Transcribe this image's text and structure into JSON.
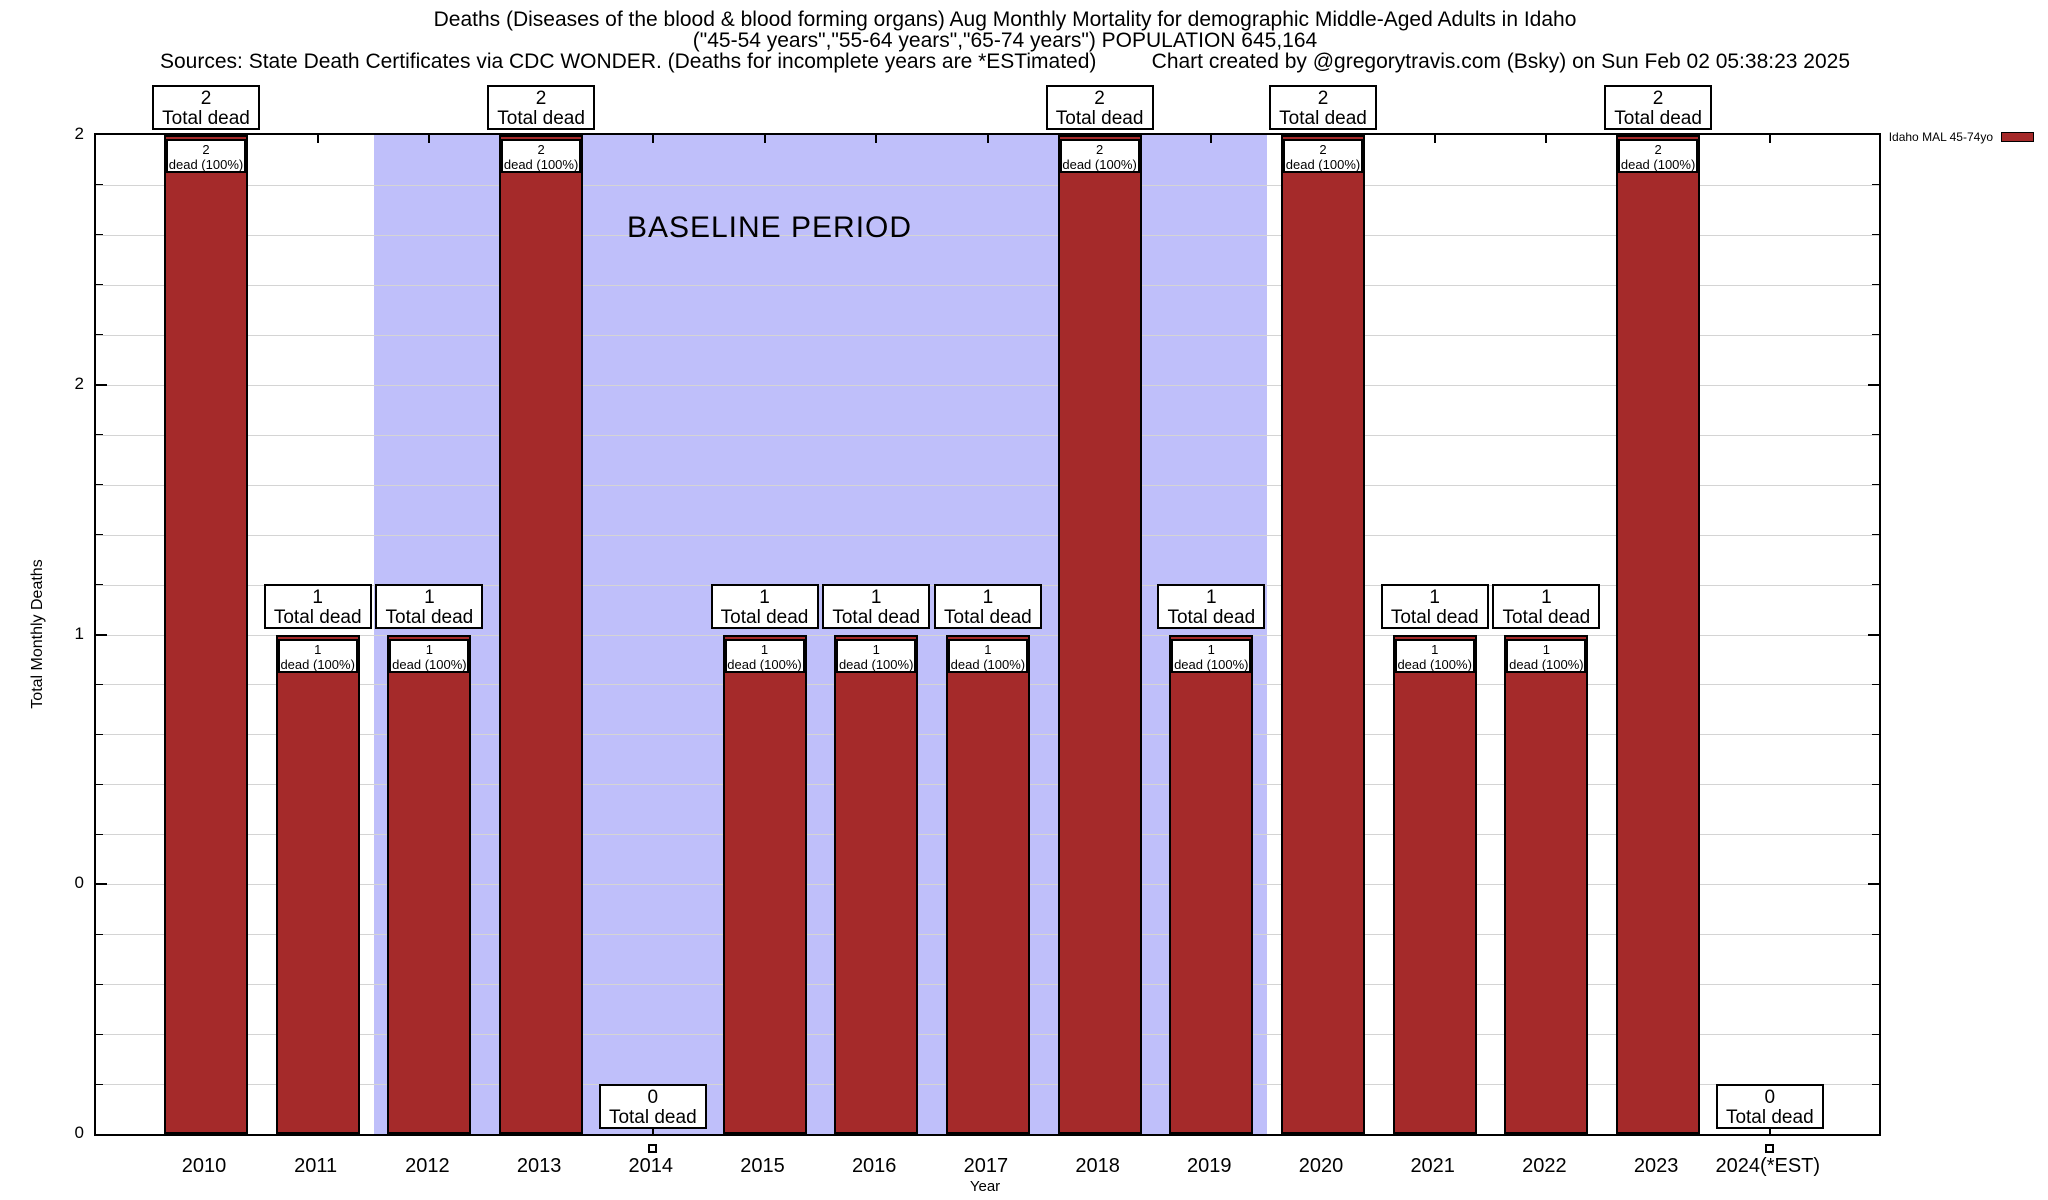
{
  "header": {
    "title_line1": "Deaths (Diseases of the blood & blood forming organs) Aug Monthly Mortality for demographic Middle-Aged Adults in Idaho",
    "title_line2": "(\"45-54 years\",\"55-64 years\",\"65-74 years\") POPULATION 645,164",
    "sources_left": "Sources: State Death Certificates via CDC WONDER. (Deaths for incomplete years are *ESTimated)",
    "sources_right": "Chart created by @gregorytravis.com (Bsky) on Sun Feb 02 05:38:23 2025"
  },
  "legend": {
    "label": "Idaho MAL 45-74yo",
    "swatch_color": "#A52A2A"
  },
  "chart_data": {
    "type": "bar",
    "title": "Deaths (Diseases of the blood & blood forming organs) Aug Monthly Mortality for demographic Middle-Aged Adults in Idaho",
    "subtitle": "(\"45-54 years\",\"55-64 years\",\"65-74 years\") POPULATION 645,164",
    "xlabel": "Year",
    "ylabel": "Total Monthly Deaths",
    "ylim": [
      0,
      2
    ],
    "grid": true,
    "grid_step": 0.1,
    "legend_position": "top-right-outside",
    "categories": [
      "2010",
      "2011",
      "2012",
      "2013",
      "2014",
      "2015",
      "2016",
      "2017",
      "2018",
      "2019",
      "2020",
      "2021",
      "2022",
      "2023",
      "2024(*EST)"
    ],
    "series": [
      {
        "name": "Idaho MAL 45-74yo",
        "color": "#A52A2A",
        "values": [
          2,
          1,
          1,
          2,
          0,
          1,
          1,
          1,
          2,
          1,
          2,
          1,
          1,
          2,
          0
        ]
      }
    ],
    "yticks": [
      {
        "v": 2.0,
        "label": "2"
      },
      {
        "v": 1.5,
        "label": "2"
      },
      {
        "v": 1.0,
        "label": "1"
      },
      {
        "v": 0.5,
        "label": "0"
      },
      {
        "v": 0.0,
        "label": "0"
      }
    ],
    "baseline_band": {
      "label": "BASELINE PERIOD",
      "x_from_index": 1.5,
      "x_to_index": 9.5,
      "color": "#BFBFFA"
    },
    "annotations": {
      "total_box_suffix": "Total dead",
      "pct_box_suffix": "dead (100%)"
    },
    "zero_marker_indices": [
      4,
      14
    ],
    "colors": {
      "bar": "#A52A2A",
      "band": "#BFBFFA",
      "grid": "#D4D4D4",
      "text": "#000000"
    }
  }
}
